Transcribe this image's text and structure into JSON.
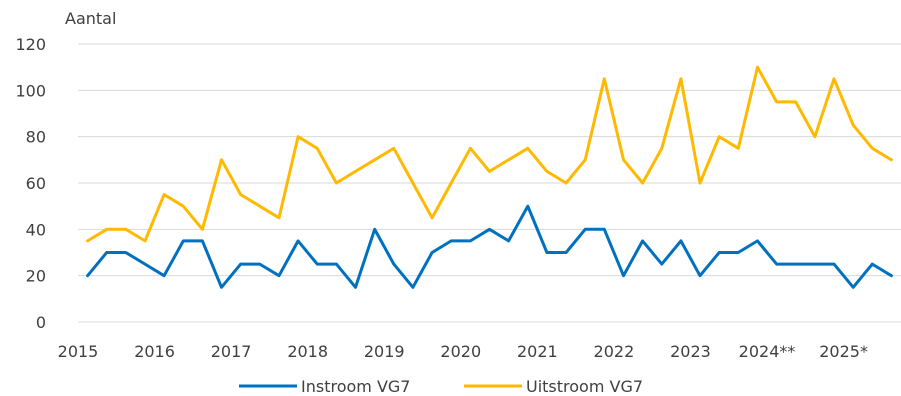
{
  "chart_data": {
    "type": "line",
    "title": "",
    "ylabel": "Aantal",
    "xlabel": "",
    "ylim": [
      0,
      120
    ],
    "yticks": [
      0,
      20,
      40,
      60,
      80,
      100,
      120
    ],
    "xlim": [
      2015,
      2025.75
    ],
    "xticks": [
      {
        "value": 2015,
        "label": "2015"
      },
      {
        "value": 2016,
        "label": "2016"
      },
      {
        "value": 2017,
        "label": "2017"
      },
      {
        "value": 2018,
        "label": "2018"
      },
      {
        "value": 2019,
        "label": "2019"
      },
      {
        "value": 2020,
        "label": "2020"
      },
      {
        "value": 2021,
        "label": "2021"
      },
      {
        "value": 2022,
        "label": "2022"
      },
      {
        "value": 2023,
        "label": "2023"
      },
      {
        "value": 2024,
        "label": "2024**"
      },
      {
        "value": 2025,
        "label": "2025*"
      }
    ],
    "grid": true,
    "legend_position": "bottom",
    "x": [
      2015.125,
      2015.375,
      2015.625,
      2015.875,
      2016.125,
      2016.375,
      2016.625,
      2016.875,
      2017.125,
      2017.375,
      2017.625,
      2017.875,
      2018.125,
      2018.375,
      2018.625,
      2018.875,
      2019.125,
      2019.375,
      2019.625,
      2019.875,
      2020.125,
      2020.375,
      2020.625,
      2020.875,
      2021.125,
      2021.375,
      2021.625,
      2021.875,
      2022.125,
      2022.375,
      2022.625,
      2022.875,
      2023.125,
      2023.375,
      2023.625,
      2023.875,
      2024.125,
      2024.375,
      2024.625,
      2024.875,
      2025.125,
      2025.375,
      2025.625
    ],
    "series": [
      {
        "name": "Instroom VG7",
        "color": "#0070c0",
        "values": [
          20,
          30,
          30,
          25,
          20,
          35,
          35,
          15,
          25,
          25,
          20,
          35,
          25,
          25,
          15,
          40,
          25,
          15,
          30,
          35,
          35,
          40,
          35,
          50,
          30,
          30,
          40,
          40,
          20,
          35,
          25,
          35,
          20,
          30,
          30,
          35,
          25,
          25,
          25,
          25,
          15,
          25,
          20
        ]
      },
      {
        "name": "Uitstroom VG7",
        "color": "#ffb900",
        "values": [
          35,
          40,
          40,
          35,
          55,
          50,
          40,
          70,
          55,
          50,
          45,
          80,
          75,
          60,
          65,
          70,
          75,
          60,
          45,
          60,
          75,
          65,
          70,
          75,
          65,
          60,
          70,
          105,
          70,
          60,
          75,
          105,
          60,
          80,
          75,
          110,
          95,
          95,
          80,
          105,
          85,
          75,
          70
        ]
      }
    ]
  }
}
